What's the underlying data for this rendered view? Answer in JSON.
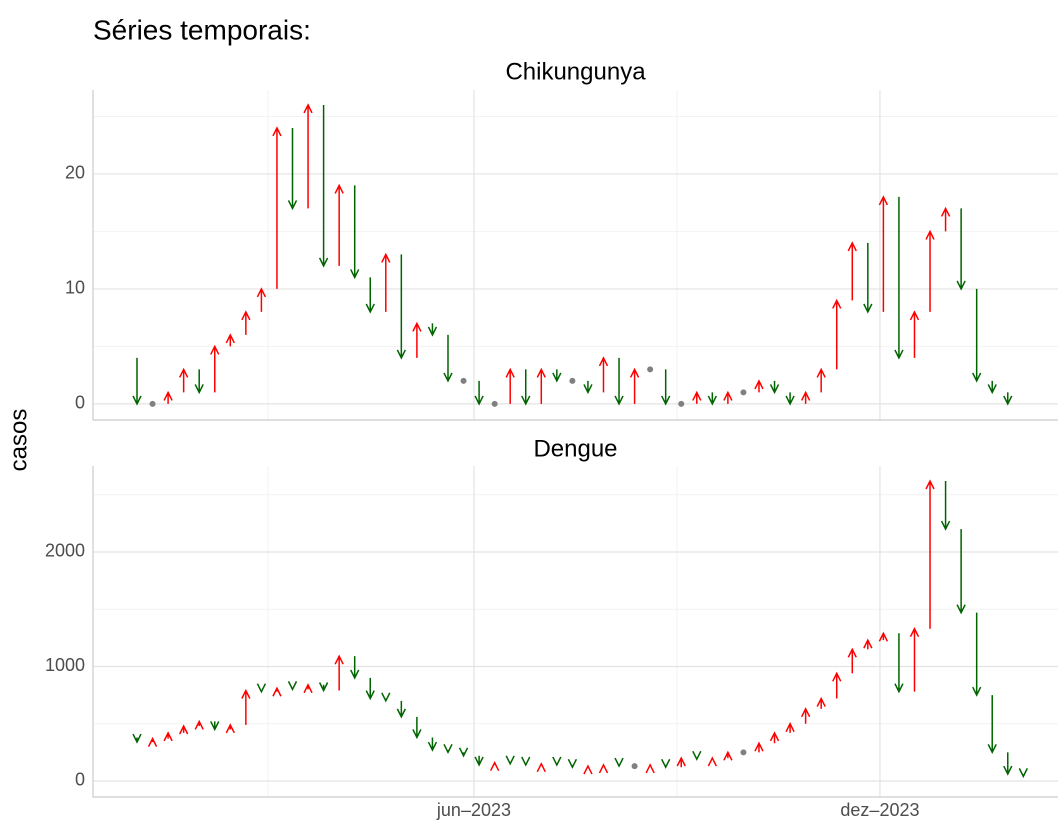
{
  "page_title": "Séries temporais:",
  "y_label": "casos",
  "chart_data": [
    {
      "type": "arrow-change",
      "title": "Chikungunya",
      "categories": [
        null,
        null,
        null,
        null,
        null,
        null,
        null,
        null,
        null,
        null,
        null,
        null,
        null,
        null,
        null,
        null,
        null,
        null,
        null,
        null,
        null,
        null,
        null,
        null,
        null,
        null,
        null,
        null,
        null,
        null,
        null,
        null,
        null,
        null,
        null,
        null,
        null,
        null,
        null,
        null,
        null,
        null,
        null,
        null,
        null,
        null,
        null,
        null,
        null,
        null,
        null,
        null,
        null,
        null,
        null,
        null,
        null,
        null
      ],
      "values": [
        4,
        0,
        0,
        1,
        3,
        1,
        5,
        6,
        8,
        10,
        24,
        17,
        26,
        12,
        19,
        11,
        8,
        13,
        4,
        7,
        6,
        2,
        2,
        0,
        0,
        3,
        0,
        3,
        2,
        2,
        1,
        4,
        0,
        3,
        3,
        0,
        0,
        1,
        0,
        1,
        1,
        2,
        1,
        0,
        1,
        3,
        9,
        14,
        8,
        18,
        4,
        8,
        15,
        17,
        10,
        2,
        1,
        0
      ],
      "xlim": [
        -1.83,
        60.23
      ],
      "ylim": [
        -1.4,
        27.3
      ],
      "yticks": [
        0,
        10,
        20
      ],
      "y_minor_grid": [
        5,
        15,
        25
      ],
      "x_major_grid": [
        22.67,
        48.78
      ],
      "x_minor_grid": [
        9.42,
        35.73
      ],
      "up_color": "#ff0000",
      "down_color": "#006400",
      "flat_color": "#808080"
    },
    {
      "type": "arrow-change",
      "title": "Dengue",
      "categories": [
        null,
        null,
        null,
        null,
        null,
        null,
        null,
        null,
        null,
        null,
        null,
        null,
        null,
        null,
        null,
        null,
        null,
        null,
        null,
        null,
        null,
        null,
        null,
        null,
        null,
        null,
        null,
        null,
        null,
        null,
        null,
        null,
        null,
        null,
        null,
        null,
        null,
        null,
        null,
        null,
        null,
        null,
        null,
        null,
        null,
        null,
        null,
        null,
        null,
        null,
        null,
        null,
        null,
        null,
        null,
        null,
        null,
        null,
        null
      ],
      "values": [
        380,
        340,
        370,
        420,
        480,
        520,
        450,
        490,
        790,
        780,
        810,
        800,
        840,
        790,
        1090,
        900,
        720,
        700,
        560,
        380,
        270,
        250,
        220,
        140,
        160,
        150,
        140,
        150,
        140,
        120,
        130,
        140,
        130,
        130,
        140,
        120,
        200,
        190,
        200,
        250,
        250,
        330,
        420,
        500,
        630,
        720,
        940,
        1150,
        1230,
        1290,
        780,
        1330,
        2620,
        2200,
        1470,
        750,
        250,
        60,
        40
      ],
      "xlim": [
        -1.83,
        60.23
      ],
      "ylim": [
        -140,
        2751
      ],
      "yticks": [
        0,
        1000,
        2000
      ],
      "y_minor_grid": [
        500,
        1500,
        2500
      ],
      "xticks": [
        {
          "value": 22.67,
          "label": "jun–2023"
        },
        {
          "value": 48.78,
          "label": "dez–2023"
        }
      ],
      "x_minor_grid": [
        9.42,
        35.73
      ],
      "up_color": "#ff0000",
      "down_color": "#006400",
      "flat_color": "#808080"
    }
  ]
}
